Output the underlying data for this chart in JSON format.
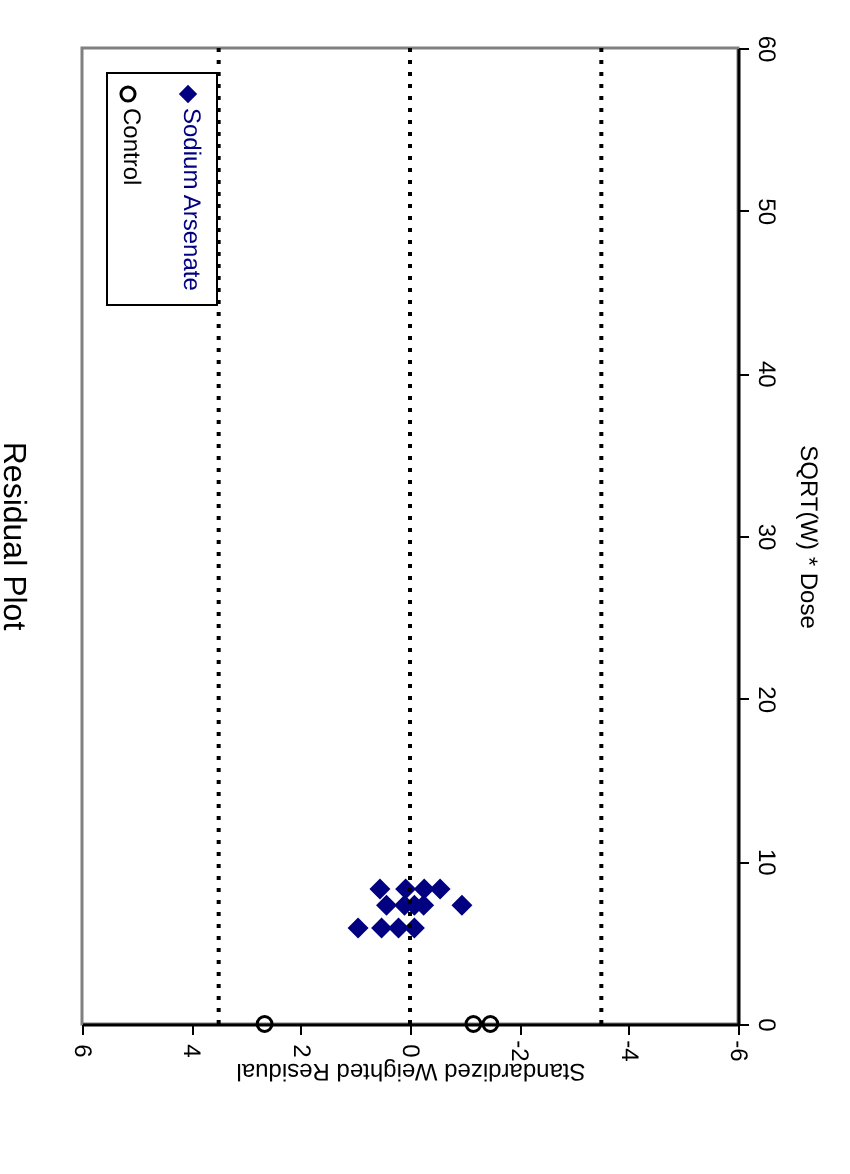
{
  "chart_data": {
    "type": "scatter",
    "title": "Residual Plot",
    "xlabel": "Standardized Weighted Residual",
    "ylabel": "SQRT(W) * Dose",
    "series": [
      {
        "name": "Control",
        "color": "#000000",
        "marker": "circle",
        "x": [
          2.66,
          -1.16,
          -1.47
        ],
        "values": [
          0,
          0,
          0
        ]
      },
      {
        "name": "Sodium Arsenate",
        "color": "#000080",
        "marker": "diamond",
        "x": [
          0.95,
          0.52,
          0.21,
          -0.08,
          0.43,
          0.1,
          -0.08,
          -0.25,
          -0.95,
          0.55,
          0.08,
          -0.26,
          -0.55
        ],
        "values": [
          5.9,
          5.9,
          5.9,
          5.9,
          7.3,
          7.3,
          7.3,
          7.3,
          7.3,
          8.3,
          8.3,
          8.3,
          8.3
        ]
      }
    ],
    "xlim": [
      6,
      -6
    ],
    "xticks": [
      6,
      4,
      2,
      0,
      -2,
      -4,
      -6
    ],
    "ylim": [
      0,
      60
    ],
    "yticks": [
      0,
      10,
      20,
      30,
      40,
      50,
      60
    ],
    "ref_lines": [
      {
        "axis": "x",
        "value": 3.5,
        "line_style": "dotted",
        "color": "#000000"
      },
      {
        "axis": "x",
        "value": 0,
        "line_style": "dotted",
        "color": "#000000"
      },
      {
        "axis": "x",
        "value": -3.5,
        "line_style": "dotted",
        "color": "#000000"
      }
    ],
    "grid": false,
    "legend": "top left"
  }
}
